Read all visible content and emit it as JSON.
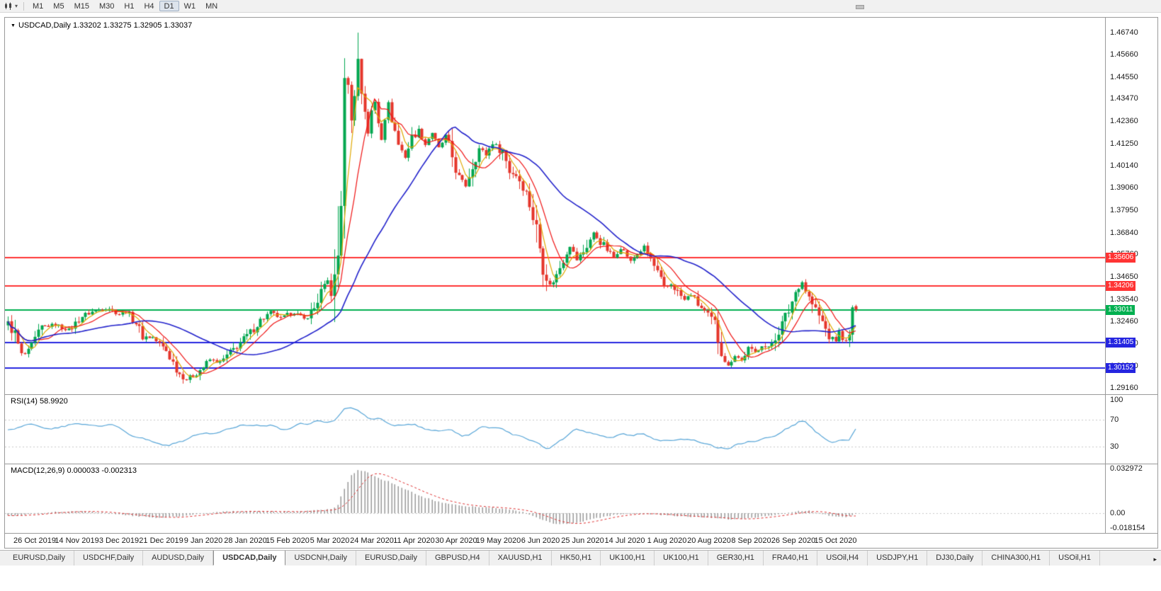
{
  "toolbar": {
    "chart_type_icon": "candlestick-chart-icon",
    "dropdown_glyph": "▾",
    "timeframes": [
      {
        "label": "M1",
        "active": false
      },
      {
        "label": "M5",
        "active": false
      },
      {
        "label": "M15",
        "active": false
      },
      {
        "label": "M30",
        "active": false
      },
      {
        "label": "H1",
        "active": false
      },
      {
        "label": "H4",
        "active": false
      },
      {
        "label": "D1",
        "active": true
      },
      {
        "label": "W1",
        "active": false
      },
      {
        "label": "MN",
        "active": false
      }
    ]
  },
  "chart": {
    "title_marker_glyph": "▼",
    "symbol_title": "USDCAD,Daily",
    "ohlc_text": "1.33202 1.33275 1.32905 1.33037",
    "price_axis_labels": [
      "1.46740",
      "1.45660",
      "1.44550",
      "1.43470",
      "1.42360",
      "1.41250",
      "1.40140",
      "1.39060",
      "1.37950",
      "1.36840",
      "1.35760",
      "1.34650",
      "1.33540",
      "1.32460",
      "1.31350",
      "1.30240",
      "1.29160"
    ]
  },
  "rsi": {
    "label": "RSI(14) 58.9920",
    "axis_labels": [
      "100",
      "70",
      "30"
    ]
  },
  "macd": {
    "label": "MACD(12,26,9) 0.000033 -0.002313",
    "axis_labels": [
      "0.032972",
      "0.00",
      "-0.018154"
    ]
  },
  "tabbar": {
    "scroll_right_glyph": "▸",
    "tabs": [
      {
        "label": "EURUSD,Daily",
        "active": false
      },
      {
        "label": "USDCHF,Daily",
        "active": false
      },
      {
        "label": "AUDUSD,Daily",
        "active": false
      },
      {
        "label": "USDCAD,Daily",
        "active": true
      },
      {
        "label": "USDCNH,Daily",
        "active": false
      },
      {
        "label": "EURUSD,Daily",
        "active": false
      },
      {
        "label": "GBPUSD,H4",
        "active": false
      },
      {
        "label": "XAUUSD,H1",
        "active": false
      },
      {
        "label": "HK50,H1",
        "active": false
      },
      {
        "label": "UK100,H1",
        "active": false
      },
      {
        "label": "UK100,H1",
        "active": false
      },
      {
        "label": "GER30,H1",
        "active": false
      },
      {
        "label": "FRA40,H1",
        "active": false
      },
      {
        "label": "USOil,H4",
        "active": false
      },
      {
        "label": "USDJPY,H1",
        "active": false
      },
      {
        "label": "DJ30,Daily",
        "active": false
      },
      {
        "label": "CHINA300,H1",
        "active": false
      },
      {
        "label": "USOil,H1",
        "active": false
      }
    ]
  },
  "colors": {
    "candle_up": "#00A64F",
    "candle_down": "#E5352B",
    "ma_fast": "#E0A800",
    "ma_mid": "#F01414",
    "ma_slow": "#2323CC",
    "rsi_line": "#58A6D8",
    "macd_hist": "#9A9A9A",
    "macd_signal": "#E03030",
    "level_red": "#FF3434",
    "level_green": "#00B050",
    "level_blue": "#2525E0",
    "grid_dotted": "#C8C8C8",
    "axis_text": "#1A1A1A"
  },
  "chart_data": {
    "type": "candlestick",
    "symbol": "USDCAD",
    "timeframe": "Daily",
    "current_ohlc": {
      "open": 1.33202,
      "high": 1.33275,
      "low": 1.32905,
      "close": 1.33037
    },
    "candle_count": 253,
    "peak_high": 1.4674,
    "ylim": [
      1.2884,
      1.4748
    ],
    "y_ticks": [
      1.4674,
      1.4566,
      1.4455,
      1.4347,
      1.4236,
      1.4125,
      1.4014,
      1.3906,
      1.3795,
      1.3684,
      1.3576,
      1.3465,
      1.3354,
      1.3246,
      1.3135,
      1.3024,
      1.2916
    ],
    "x_labels": [
      "26 Oct 2019",
      "14 Nov 2019",
      "3 Dec 2019",
      "21 Dec 2019",
      "9 Jan 2020",
      "28 Jan 2020",
      "15 Feb 2020",
      "5 Mar 2020",
      "24 Mar 2020",
      "11 Apr 2020",
      "30 Apr 2020",
      "19 May 2020",
      "6 Jun 2020",
      "25 Jun 2020",
      "14 Jul 2020",
      "1 Aug 2020",
      "20 Aug 2020",
      "8 Sep 2020",
      "26 Sep 2020",
      "15 Oct 2020"
    ],
    "horizontal_levels": [
      {
        "price": 1.35606,
        "label": "1.35606",
        "color": "#FF3434"
      },
      {
        "price": 1.34206,
        "label": "1.34206",
        "color": "#FF3434"
      },
      {
        "price": 1.33011,
        "label": "1.33011",
        "color": "#00B050"
      },
      {
        "price": 1.31405,
        "label": "1.31405",
        "color": "#2525E0"
      },
      {
        "price": 1.30152,
        "label": "1.30152",
        "color": "#2525E0"
      }
    ],
    "moving_averages": [
      {
        "name": "fast",
        "period": 5,
        "color": "#E0A800"
      },
      {
        "name": "mid",
        "period": 10,
        "color": "#F01414"
      },
      {
        "name": "slow",
        "period": 34,
        "color": "#2323CC"
      }
    ],
    "price_path_anchors": [
      [
        0,
        1.3235
      ],
      [
        2,
        1.318
      ],
      [
        4,
        1.3075
      ],
      [
        6,
        1.309
      ],
      [
        8,
        1.315
      ],
      [
        10,
        1.3215
      ],
      [
        14,
        1.323
      ],
      [
        18,
        1.32
      ],
      [
        22,
        1.327
      ],
      [
        26,
        1.33
      ],
      [
        30,
        1.331
      ],
      [
        33,
        1.328
      ],
      [
        35,
        1.3295
      ],
      [
        38,
        1.324
      ],
      [
        40,
        1.317
      ],
      [
        43,
        1.3165
      ],
      [
        45,
        1.313
      ],
      [
        47,
        1.31
      ],
      [
        49,
        1.304
      ],
      [
        51,
        1.2985
      ],
      [
        53,
        1.2958
      ],
      [
        56,
        1.299
      ],
      [
        58,
        1.302
      ],
      [
        60,
        1.3055
      ],
      [
        63,
        1.304
      ],
      [
        66,
        1.309
      ],
      [
        69,
        1.314
      ],
      [
        72,
        1.319
      ],
      [
        75,
        1.325
      ],
      [
        78,
        1.329
      ],
      [
        81,
        1.326
      ],
      [
        85,
        1.329
      ],
      [
        88,
        1.3255
      ],
      [
        91,
        1.331
      ],
      [
        93,
        1.339
      ],
      [
        95,
        1.3445
      ],
      [
        96,
        1.339
      ],
      [
        97,
        1.342
      ],
      [
        98,
        1.356
      ],
      [
        99,
        1.392
      ],
      [
        100,
        1.435
      ],
      [
        101,
        1.448
      ],
      [
        102,
        1.422
      ],
      [
        103,
        1.438
      ],
      [
        104,
        1.454
      ],
      [
        105,
        1.438
      ],
      [
        106,
        1.43
      ],
      [
        107,
        1.418
      ],
      [
        108,
        1.428
      ],
      [
        109,
        1.433
      ],
      [
        110,
        1.423
      ],
      [
        111,
        1.415
      ],
      [
        112,
        1.425
      ],
      [
        113,
        1.432
      ],
      [
        114,
        1.425
      ],
      [
        116,
        1.412
      ],
      [
        118,
        1.406
      ],
      [
        120,
        1.415
      ],
      [
        122,
        1.419
      ],
      [
        124,
        1.412
      ],
      [
        126,
        1.418
      ],
      [
        128,
        1.41
      ],
      [
        130,
        1.416
      ],
      [
        132,
        1.406
      ],
      [
        134,
        1.395
      ],
      [
        136,
        1.392
      ],
      [
        138,
        1.402
      ],
      [
        140,
        1.41
      ],
      [
        142,
        1.407
      ],
      [
        144,
        1.413
      ],
      [
        146,
        1.41
      ],
      [
        147,
        1.409
      ],
      [
        149,
        1.399
      ],
      [
        151,
        1.397
      ],
      [
        153,
        1.392
      ],
      [
        155,
        1.383
      ],
      [
        157,
        1.37
      ],
      [
        159,
        1.353
      ],
      [
        161,
        1.342
      ],
      [
        163,
        1.347
      ],
      [
        165,
        1.356
      ],
      [
        167,
        1.362
      ],
      [
        169,
        1.355
      ],
      [
        171,
        1.359
      ],
      [
        172,
        1.362
      ],
      [
        174,
        1.368
      ],
      [
        176,
        1.364
      ],
      [
        178,
        1.36
      ],
      [
        180,
        1.356
      ],
      [
        182,
        1.361
      ],
      [
        184,
        1.357
      ],
      [
        185,
        1.354
      ],
      [
        187,
        1.358
      ],
      [
        189,
        1.361
      ],
      [
        191,
        1.355
      ],
      [
        193,
        1.348
      ],
      [
        195,
        1.341
      ],
      [
        197,
        1.343
      ],
      [
        199,
        1.339
      ],
      [
        201,
        1.335
      ],
      [
        203,
        1.338
      ],
      [
        205,
        1.333
      ],
      [
        207,
        1.329
      ],
      [
        209,
        1.325
      ],
      [
        210,
        1.323
      ],
      [
        211,
        1.316
      ],
      [
        213,
        1.306
      ],
      [
        214,
        1.302
      ],
      [
        216,
        1.308
      ],
      [
        218,
        1.305
      ],
      [
        220,
        1.311
      ],
      [
        222,
        1.309
      ],
      [
        224,
        1.313
      ],
      [
        226,
        1.311
      ],
      [
        228,
        1.317
      ],
      [
        230,
        1.323
      ],
      [
        232,
        1.33
      ],
      [
        234,
        1.339
      ],
      [
        235,
        1.342
      ],
      [
        236,
        1.344
      ],
      [
        238,
        1.336
      ],
      [
        240,
        1.33
      ],
      [
        242,
        1.324
      ],
      [
        244,
        1.317
      ],
      [
        246,
        1.315
      ],
      [
        247,
        1.319
      ],
      [
        248,
        1.316
      ],
      [
        249,
        1.313
      ],
      [
        250,
        1.3165
      ],
      [
        251,
        1.332
      ],
      [
        252,
        1.33037
      ]
    ],
    "rsi": {
      "period": 14,
      "value": 58.992,
      "levels": [
        70,
        30
      ],
      "anchors": [
        [
          0,
          55
        ],
        [
          6,
          62
        ],
        [
          12,
          57
        ],
        [
          20,
          64
        ],
        [
          26,
          60
        ],
        [
          31,
          63
        ],
        [
          36,
          50
        ],
        [
          42,
          38
        ],
        [
          48,
          30
        ],
        [
          53,
          42
        ],
        [
          58,
          50
        ],
        [
          64,
          55
        ],
        [
          70,
          60
        ],
        [
          76,
          63
        ],
        [
          82,
          57
        ],
        [
          88,
          64
        ],
        [
          93,
          70
        ],
        [
          95,
          65
        ],
        [
          97,
          68
        ],
        [
          100,
          85
        ],
        [
          102,
          88
        ],
        [
          104,
          82
        ],
        [
          106,
          75
        ],
        [
          108,
          68
        ],
        [
          110,
          73
        ],
        [
          113,
          66
        ],
        [
          116,
          60
        ],
        [
          120,
          64
        ],
        [
          124,
          57
        ],
        [
          128,
          52
        ],
        [
          131,
          60
        ],
        [
          134,
          50
        ],
        [
          136,
          45
        ],
        [
          139,
          55
        ],
        [
          142,
          60
        ],
        [
          145,
          57
        ],
        [
          148,
          53
        ],
        [
          151,
          48
        ],
        [
          154,
          42
        ],
        [
          157,
          35
        ],
        [
          159,
          28
        ],
        [
          161,
          25
        ],
        [
          163,
          33
        ],
        [
          165,
          42
        ],
        [
          167,
          50
        ],
        [
          170,
          55
        ],
        [
          173,
          52
        ],
        [
          176,
          48
        ],
        [
          179,
          45
        ],
        [
          182,
          50
        ],
        [
          185,
          44
        ],
        [
          188,
          50
        ],
        [
          191,
          45
        ],
        [
          194,
          38
        ],
        [
          197,
          42
        ],
        [
          200,
          37
        ],
        [
          203,
          42
        ],
        [
          206,
          35
        ],
        [
          209,
          32
        ],
        [
          212,
          28
        ],
        [
          214,
          25
        ],
        [
          216,
          33
        ],
        [
          218,
          30
        ],
        [
          220,
          38
        ],
        [
          222,
          35
        ],
        [
          224,
          42
        ],
        [
          226,
          40
        ],
        [
          228,
          46
        ],
        [
          230,
          52
        ],
        [
          232,
          58
        ],
        [
          234,
          66
        ],
        [
          236,
          70
        ],
        [
          238,
          60
        ],
        [
          240,
          52
        ],
        [
          242,
          45
        ],
        [
          244,
          38
        ],
        [
          246,
          36
        ],
        [
          248,
          42
        ],
        [
          249,
          38
        ],
        [
          250,
          35
        ],
        [
          251,
          45
        ],
        [
          252,
          59
        ]
      ]
    },
    "macd": {
      "fast": 12,
      "slow": 26,
      "signal": 9,
      "macd_value": 3.3e-05,
      "signal_value": -0.002313,
      "anchors": [
        [
          0,
          -0.0018
        ],
        [
          6,
          -0.001
        ],
        [
          12,
          0.0008
        ],
        [
          20,
          0.0014
        ],
        [
          26,
          0.001
        ],
        [
          32,
          -0.0006
        ],
        [
          38,
          -0.0022
        ],
        [
          44,
          -0.0032
        ],
        [
          50,
          -0.0025
        ],
        [
          56,
          -0.0008
        ],
        [
          62,
          0.0008
        ],
        [
          68,
          0.0014
        ],
        [
          74,
          0.0016
        ],
        [
          80,
          0.001
        ],
        [
          86,
          0.0012
        ],
        [
          92,
          0.0022
        ],
        [
          96,
          0.003
        ],
        [
          98,
          0.006
        ],
        [
          100,
          0.018
        ],
        [
          102,
          0.028
        ],
        [
          104,
          0.0318
        ],
        [
          106,
          0.031
        ],
        [
          108,
          0.0285
        ],
        [
          110,
          0.026
        ],
        [
          113,
          0.0235
        ],
        [
          116,
          0.02
        ],
        [
          120,
          0.0155
        ],
        [
          124,
          0.0115
        ],
        [
          128,
          0.0085
        ],
        [
          132,
          0.0065
        ],
        [
          136,
          0.005
        ],
        [
          140,
          0.0046
        ],
        [
          144,
          0.004
        ],
        [
          148,
          0.003
        ],
        [
          152,
          0.0015
        ],
        [
          156,
          -0.002
        ],
        [
          159,
          -0.005
        ],
        [
          162,
          -0.0075
        ],
        [
          166,
          -0.008
        ],
        [
          170,
          -0.0065
        ],
        [
          174,
          -0.0042
        ],
        [
          178,
          -0.0022
        ],
        [
          182,
          -0.0008
        ],
        [
          186,
          -0.0002
        ],
        [
          190,
          -0.0005
        ],
        [
          194,
          -0.0012
        ],
        [
          198,
          -0.002
        ],
        [
          202,
          -0.0025
        ],
        [
          206,
          -0.003
        ],
        [
          210,
          -0.0036
        ],
        [
          214,
          -0.0045
        ],
        [
          218,
          -0.0042
        ],
        [
          222,
          -0.0032
        ],
        [
          226,
          -0.0018
        ],
        [
          230,
          -0.0005
        ],
        [
          234,
          0.0013
        ],
        [
          238,
          0.0018
        ],
        [
          242,
          -0.0005
        ],
        [
          245,
          -0.0022
        ],
        [
          248,
          -0.003
        ],
        [
          250,
          -0.0022
        ],
        [
          252,
          3e-05
        ]
      ]
    }
  }
}
